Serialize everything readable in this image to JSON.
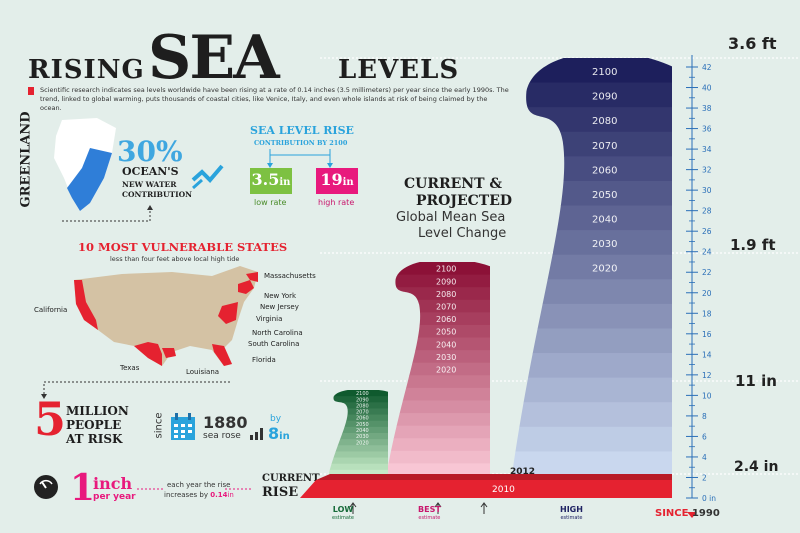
{
  "title": {
    "rising": "RISING",
    "sea": "SEA",
    "levels": "LEVELS"
  },
  "intro": "Scientific research indicates sea levels worldwide have been rising at a rate of 0.14 inches (3.5 millimeters) per year since the early 1990s. The trend, linked to global warming, puts thousands of coastal cities, like Venice, Italy, and even whole islands at risk of being claimed by the ocean.",
  "greenland": {
    "label": "GREENLAND",
    "pct": "30%",
    "line1": "OCEAN'S",
    "line2": "NEW WATER",
    "line3": "CONTRIBUTION"
  },
  "sea_rise": {
    "title": "SEA LEVEL RISE",
    "subtitle": "CONTRIBUTION BY 2100",
    "low_value": "3.5",
    "low_unit": "in",
    "low_label": "low rate",
    "high_value": "19",
    "high_unit": "in",
    "high_label": "high rate",
    "colors": {
      "low": "#7dc142",
      "high": "#e8197d"
    }
  },
  "vulnerable": {
    "title": "10 MOST VULNERABLE STATES",
    "subtitle": "less than four feet above local high tide",
    "states": [
      "Massachusetts",
      "New York",
      "New Jersey",
      "Virginia",
      "North Carolina",
      "South Carolina",
      "Florida",
      "Louisiana",
      "Texas",
      "California"
    ]
  },
  "risk": {
    "number": "5",
    "line1": "MILLION",
    "line2": "PEOPLE",
    "line3": "AT RISK"
  },
  "since": {
    "vertical": "since",
    "year": "1880",
    "sea_rose": "sea rose",
    "by": "by",
    "amount": "8",
    "unit": "in"
  },
  "inch": {
    "number": "1",
    "unit": "inch",
    "per": "per year",
    "note1": "each year the rise",
    "note2": "increases by",
    "note2_val": "0.14",
    "note2_unit": "in",
    "current1": "CURRENT",
    "current2": "RISE"
  },
  "chart": {
    "heading1": "CURRENT &",
    "heading2": "PROJECTED",
    "sub1": "Global Mean Sea",
    "sub2": "Level Change",
    "ticks": [
      "0 in",
      "2",
      "4",
      "6",
      "8",
      "10",
      "12",
      "14",
      "16",
      "18",
      "20",
      "22",
      "24",
      "26",
      "28",
      "30",
      "32",
      "34",
      "36",
      "38",
      "40",
      "42"
    ],
    "major": {
      "top": "3.6 ft",
      "mid": "1.9 ft",
      "low": "11 in",
      "base": "2.4 in"
    },
    "since_label": "SINCE",
    "since_year": "1990",
    "base_year": "2010",
    "current_year": "2012",
    "low_est": "LOW",
    "best_est": "BEST",
    "high_est": "HIGH",
    "estimate": "estimate",
    "high_years": [
      "2100",
      "2090",
      "2080",
      "2070",
      "2060",
      "2050",
      "2040",
      "2030",
      "2020"
    ],
    "best_years": [
      "2100",
      "2090",
      "2080",
      "2070",
      "2060",
      "2050",
      "2040",
      "2030",
      "2020"
    ],
    "low_years": [
      "2100",
      "2090",
      "2080",
      "2070",
      "2060",
      "2050",
      "2040",
      "2030",
      "2020"
    ]
  },
  "colors": {
    "red": "#e52230",
    "blue": "#2aa3dc",
    "navy": "#1e2263",
    "green": "#176b3a"
  }
}
